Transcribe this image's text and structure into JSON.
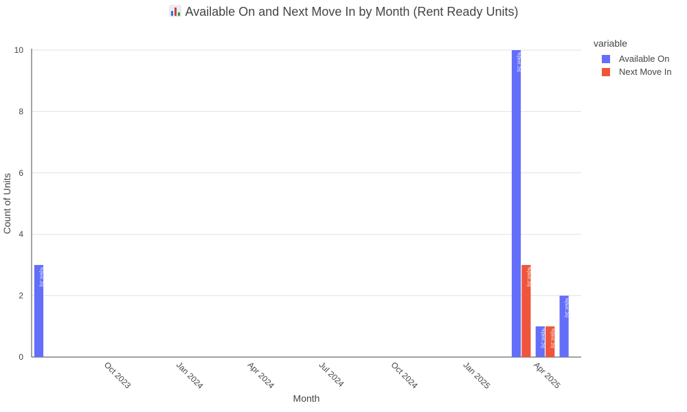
{
  "title": {
    "icon": "bar-chart-icon",
    "text": "Available On and Next Move In by Month (Rent Ready Units)"
  },
  "legend": {
    "title": "variable",
    "placement": "top-right",
    "items": [
      {
        "label": "Available On",
        "color": "#636efa"
      },
      {
        "label": "Next Move In",
        "color": "#ef553b"
      }
    ]
  },
  "chart_data": {
    "type": "bar",
    "barmode": "group",
    "title": "Available On and Next Move In by Month (Rent Ready Units)",
    "xlabel": "Month",
    "ylabel": "Count of Units",
    "x_axis_type": "date",
    "xlim": [
      "2023-07-01",
      "2025-06-01"
    ],
    "ylim": [
      0,
      10
    ],
    "grid": true,
    "x_ticks": [
      {
        "date": "2023-10-01",
        "label": "Oct 2023"
      },
      {
        "date": "2024-01-01",
        "label": "Jan 2024"
      },
      {
        "date": "2024-04-01",
        "label": "Apr 2024"
      },
      {
        "date": "2024-07-01",
        "label": "Jul 2024"
      },
      {
        "date": "2024-10-01",
        "label": "Oct 2024"
      },
      {
        "date": "2025-01-01",
        "label": "Jan 2025"
      },
      {
        "date": "2025-04-01",
        "label": "Apr 2025"
      }
    ],
    "y_ticks": [
      0,
      2,
      4,
      6,
      8,
      10
    ],
    "bar_text": "%{text:.2s}",
    "series": [
      {
        "name": "Available On",
        "color": "#636efa",
        "points": [
          {
            "x": "2023-07-01",
            "y": 3
          },
          {
            "x": "2025-03-01",
            "y": 10
          },
          {
            "x": "2025-04-01",
            "y": 1
          },
          {
            "x": "2025-05-01",
            "y": 2
          }
        ]
      },
      {
        "name": "Next Move In",
        "color": "#ef553b",
        "points": [
          {
            "x": "2025-03-01",
            "y": 3
          },
          {
            "x": "2025-04-01",
            "y": 1
          }
        ]
      }
    ]
  }
}
